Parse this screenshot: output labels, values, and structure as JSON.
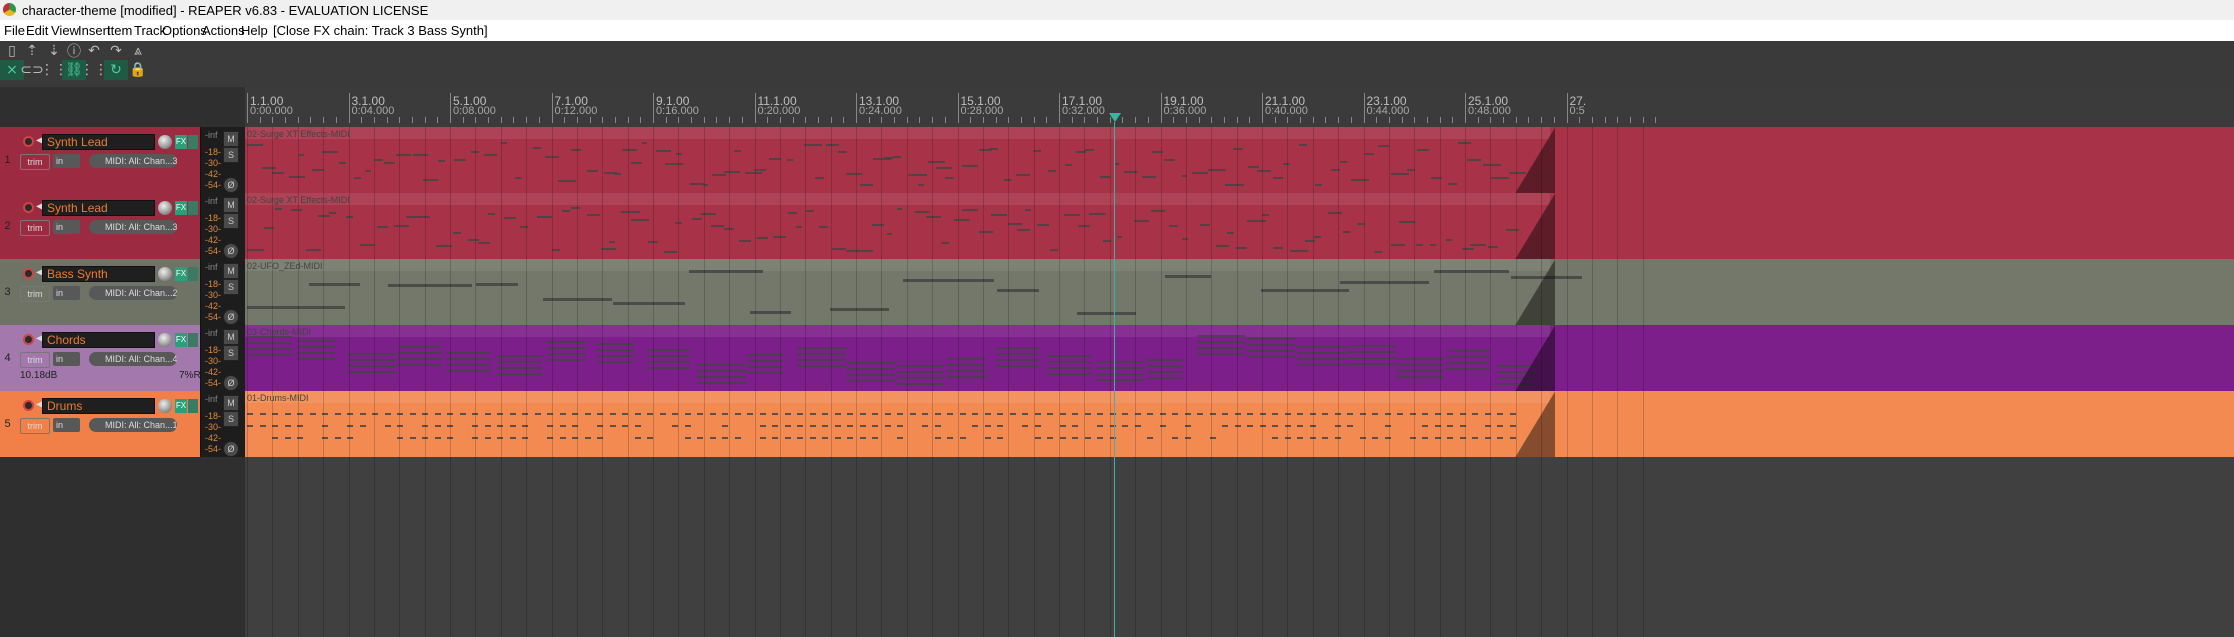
{
  "window": {
    "title": "character-theme [modified] - REAPER v6.83 - EVALUATION LICENSE"
  },
  "menu": [
    "File",
    "Edit",
    "View",
    "Insert",
    "Item",
    "Track",
    "Options",
    "Actions",
    "Help"
  ],
  "menu_status": "[Close FX chain: Track 3 Bass Synth]",
  "toolbar": {
    "row1_icons": [
      "new-project-icon",
      "open-project-icon",
      "save-project-icon",
      "project-info-icon",
      "undo-icon",
      "redo-icon",
      "metronome-icon"
    ],
    "row2_icons": [
      "ripple-edit-icon",
      "loop-icon",
      "grid-icon",
      "item-grouping-icon",
      "snap-icon",
      "autoscroll-icon",
      "lock-icon"
    ]
  },
  "ruler": {
    "marks": [
      {
        "bar": "1.1.00",
        "time": "0:00.000"
      },
      {
        "bar": "3.1.00",
        "time": "0:04.000"
      },
      {
        "bar": "5.1.00",
        "time": "0:08.000"
      },
      {
        "bar": "7.1.00",
        "time": "0:12.000"
      },
      {
        "bar": "9.1.00",
        "time": "0:16.000"
      },
      {
        "bar": "11.1.00",
        "time": "0:20.000"
      },
      {
        "bar": "13.1.00",
        "time": "0:24.000"
      },
      {
        "bar": "15.1.00",
        "time": "0:28.000"
      },
      {
        "bar": "17.1.00",
        "time": "0:32.000"
      },
      {
        "bar": "19.1.00",
        "time": "0:36.000"
      },
      {
        "bar": "21.1.00",
        "time": "0:40.000"
      },
      {
        "bar": "23.1.00",
        "time": "0:44.000"
      },
      {
        "bar": "25.1.00",
        "time": "0:48.000"
      },
      {
        "bar": "27.",
        "time": "0:5"
      }
    ]
  },
  "tracks": [
    {
      "num": "1",
      "name": "Synth Lead",
      "input": "in",
      "midi": "MIDI: All: Chan...3",
      "trim": "trim",
      "fx": "FX",
      "item": "02-Surge XT Effects-MIDI",
      "color": "#a83248",
      "panel": "#9c2b42",
      "pattern": "lead",
      "volume": "",
      "pan": ""
    },
    {
      "num": "2",
      "name": "Synth Lead",
      "input": "in",
      "midi": "MIDI: All: Chan...3",
      "trim": "trim",
      "fx": "FX",
      "item": "02-Surge XT Effects-MIDI",
      "color": "#a83248",
      "panel": "#9c2b42",
      "pattern": "lead",
      "volume": "",
      "pan": ""
    },
    {
      "num": "3",
      "name": "Bass Synth",
      "input": "in",
      "midi": "MIDI: All: Chan...2",
      "trim": "trim",
      "fx": "FX",
      "item": "02-UFO_ZEd-MIDI",
      "color": "#74786a",
      "panel": "#6e7366",
      "pattern": "bass",
      "volume": "",
      "pan": ""
    },
    {
      "num": "4",
      "name": "Chords",
      "input": "in",
      "midi": "MIDI: All: Chan...4",
      "trim": "trim",
      "fx": "FX",
      "item": "03-Chords-MIDI",
      "color": "#7d1f8a",
      "panel": "#a278ad",
      "pattern": "chords",
      "volume": "10.18dB",
      "pan": "7%R"
    },
    {
      "num": "5",
      "name": "Drums",
      "input": "in",
      "midi": "MIDI: All: Chan...1",
      "trim": "trim",
      "fx": "FX",
      "item": "01-Drums-MIDI",
      "color": "#f28a52",
      "panel": "#f08048",
      "pattern": "drums",
      "volume": "",
      "pan": ""
    }
  ],
  "meter_labels": [
    "-inf",
    "-18-",
    "-30-",
    "-42-",
    "-54-"
  ],
  "track_buttons": {
    "mute": "M",
    "solo": "S",
    "phase": "Ø"
  }
}
